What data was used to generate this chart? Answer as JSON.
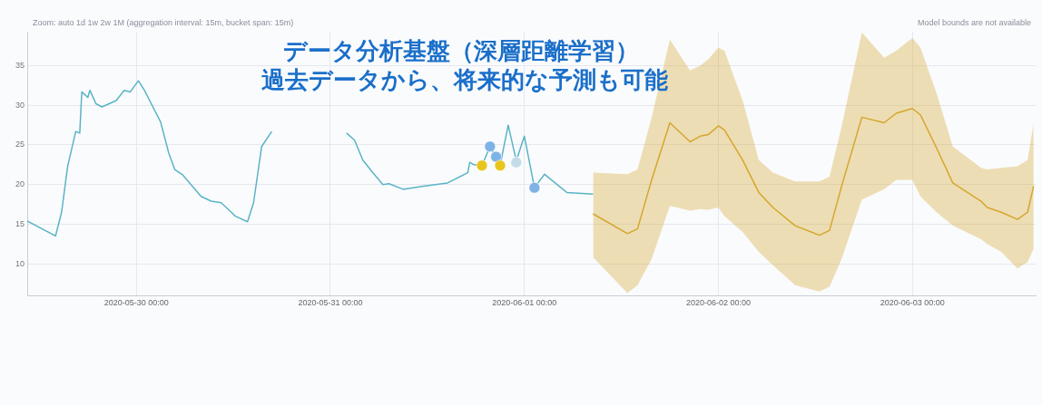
{
  "chart_data": {
    "type": "line",
    "title": "データ分析基盤（深層距離学習）",
    "subtitle": "過去データから、将来的な予測も可能",
    "annotations": [
      "Zoom: auto 1d 1w 2w 1M   (aggregation interval: 15m, bucket span: 15m)",
      "Model bounds are not available"
    ],
    "xlim": [
      "2020-05-29T10:30",
      "2020-06-03T15:15"
    ],
    "xticks": [
      {
        "value": "2020-05-30T00:00",
        "label": "2020-05-30 00:00"
      },
      {
        "value": "2020-05-31T00:00",
        "label": "2020-05-31 00:00"
      },
      {
        "value": "2020-06-01T00:00",
        "label": "2020-06-01 00:00"
      },
      {
        "value": "2020-06-02T00:00",
        "label": "2020-06-02 00:00"
      },
      {
        "value": "2020-06-03T00:00",
        "label": "2020-06-03 00:00"
      }
    ],
    "ylim": [
      6,
      39.3
    ],
    "yticks": [
      10,
      15,
      20,
      25,
      30,
      35
    ],
    "grid": true,
    "legend": false,
    "series": [
      {
        "color": "#5ab4c5",
        "x": [
          "2020-05-29T10:30",
          "2020-05-29T14:00",
          "2020-05-29T14:45",
          "2020-05-29T15:30",
          "2020-05-29T16:30",
          "2020-05-29T17:00",
          "2020-05-29T17:15",
          "2020-05-29T18:00",
          "2020-05-29T18:15",
          "2020-05-29T19:00",
          "2020-05-29T19:45",
          "2020-05-29T21:30",
          "2020-05-29T22:30",
          "2020-05-29T23:15",
          "2020-05-30T00:15",
          "2020-05-30T01:00",
          "2020-05-30T01:45",
          "2020-05-30T03:00",
          "2020-05-30T04:00",
          "2020-05-30T04:45",
          "2020-05-30T05:45",
          "2020-05-30T08:00",
          "2020-05-30T09:15",
          "2020-05-30T10:30",
          "2020-05-30T12:15",
          "2020-05-30T13:45",
          "2020-05-30T14:30",
          "2020-05-30T15:30",
          "2020-05-30T16:45",
          "2020-05-30T20:00",
          "2020-05-31T02:00",
          "2020-05-31T03:00",
          "2020-05-31T04:00",
          "2020-05-31T05:15",
          "2020-05-31T06:30",
          "2020-05-31T07:15",
          "2020-05-31T09:00",
          "2020-05-31T11:30",
          "2020-05-31T14:30",
          "2020-05-31T17:00",
          "2020-05-31T17:15",
          "2020-05-31T17:45",
          "2020-05-31T18:45",
          "2020-05-31T19:45",
          "2020-05-31T20:30",
          "2020-05-31T21:00",
          "2020-05-31T22:00",
          "2020-05-31T23:00",
          "2020-06-01T00:00",
          "2020-06-01T01:15",
          "2020-06-01T02:30",
          "2020-06-01T05:15",
          "2020-06-01T08:30"
        ],
        "values": [
          15.4,
          13.5,
          16.5,
          22.3,
          26.7,
          26.5,
          31.7,
          31,
          31.9,
          30.2,
          29.8,
          30.6,
          31.9,
          31.7,
          33.1,
          31.9,
          30.4,
          27.9,
          24,
          21.9,
          21.2,
          18.5,
          17.9,
          17.7,
          16,
          15.3,
          17.7,
          24.8,
          26.7,
          null,
          26.5,
          25.6,
          23.1,
          21.5,
          20,
          20.1,
          19.4,
          19.8,
          20.2,
          21.5,
          22.8,
          22.5,
          22.4,
          24.8,
          23.5,
          22.4,
          27.5,
          23,
          26.1,
          19.6,
          21.3,
          19,
          18.8
        ]
      },
      {
        "color": "#d4a72c",
        "x": [
          "2020-06-01T08:30",
          "2020-06-01T12:45",
          "2020-06-01T14:00",
          "2020-06-01T15:45",
          "2020-06-01T18:00",
          "2020-06-01T20:30",
          "2020-06-01T21:45",
          "2020-06-01T22:45",
          "2020-06-02T00:00",
          "2020-06-02T00:45",
          "2020-06-02T03:00",
          "2020-06-02T05:00",
          "2020-06-02T06:45",
          "2020-06-02T09:30",
          "2020-06-02T12:30",
          "2020-06-02T13:45",
          "2020-06-02T15:15",
          "2020-06-02T17:45",
          "2020-06-02T20:30",
          "2020-06-02T22:00",
          "2020-06-03T00:00",
          "2020-06-03T01:00",
          "2020-06-03T03:00",
          "2020-06-03T05:00",
          "2020-06-03T08:30",
          "2020-06-03T09:15",
          "2020-06-03T11:00",
          "2020-06-03T13:00",
          "2020-06-03T14:15",
          "2020-06-03T15:00"
        ],
        "values": [
          16.3,
          13.8,
          14.4,
          20.6,
          27.8,
          25.4,
          26.1,
          26.3,
          27.4,
          26.9,
          23.1,
          19,
          17.1,
          14.8,
          13.6,
          14.2,
          19.8,
          28.5,
          27.8,
          29,
          29.6,
          28.8,
          24.6,
          20.2,
          17.9,
          17.1,
          16.5,
          15.6,
          16.5,
          19.8
        ],
        "upper": [
          21.5,
          21.3,
          21.9,
          28.5,
          38.3,
          34.4,
          35,
          35.8,
          37.3,
          36.9,
          30.6,
          23.1,
          21.5,
          20.4,
          20.4,
          21,
          27.3,
          39.2,
          36,
          36.9,
          38.5,
          37.3,
          31.5,
          24.8,
          22.1,
          21.9,
          22.1,
          22.3,
          23.1,
          27.7
        ],
        "lower": [
          10.8,
          6.3,
          7.3,
          10.6,
          17.3,
          16.7,
          16.9,
          16.8,
          17.1,
          16,
          14,
          11.5,
          9.8,
          7.3,
          6.5,
          7.1,
          10.6,
          18.1,
          19.4,
          20.6,
          20.6,
          18.5,
          16.5,
          14.8,
          13.1,
          12.5,
          11.5,
          9.4,
          10.2,
          11.9
        ]
      },
      {
        "type": "scatter",
        "marker": "circle",
        "colors": [
          "#e8c51c",
          "#7fb2e5",
          "#7fb2e5",
          "#e8c51c",
          "#c5dbe8",
          "#7fb2e5"
        ],
        "x": [
          "2020-05-31T18:45",
          "2020-05-31T19:45",
          "2020-05-31T20:30",
          "2020-05-31T21:00",
          "2020-05-31T23:00",
          "2020-06-01T01:15"
        ],
        "values": [
          22.4,
          24.8,
          23.5,
          22.4,
          22.8,
          19.6
        ]
      }
    ]
  }
}
